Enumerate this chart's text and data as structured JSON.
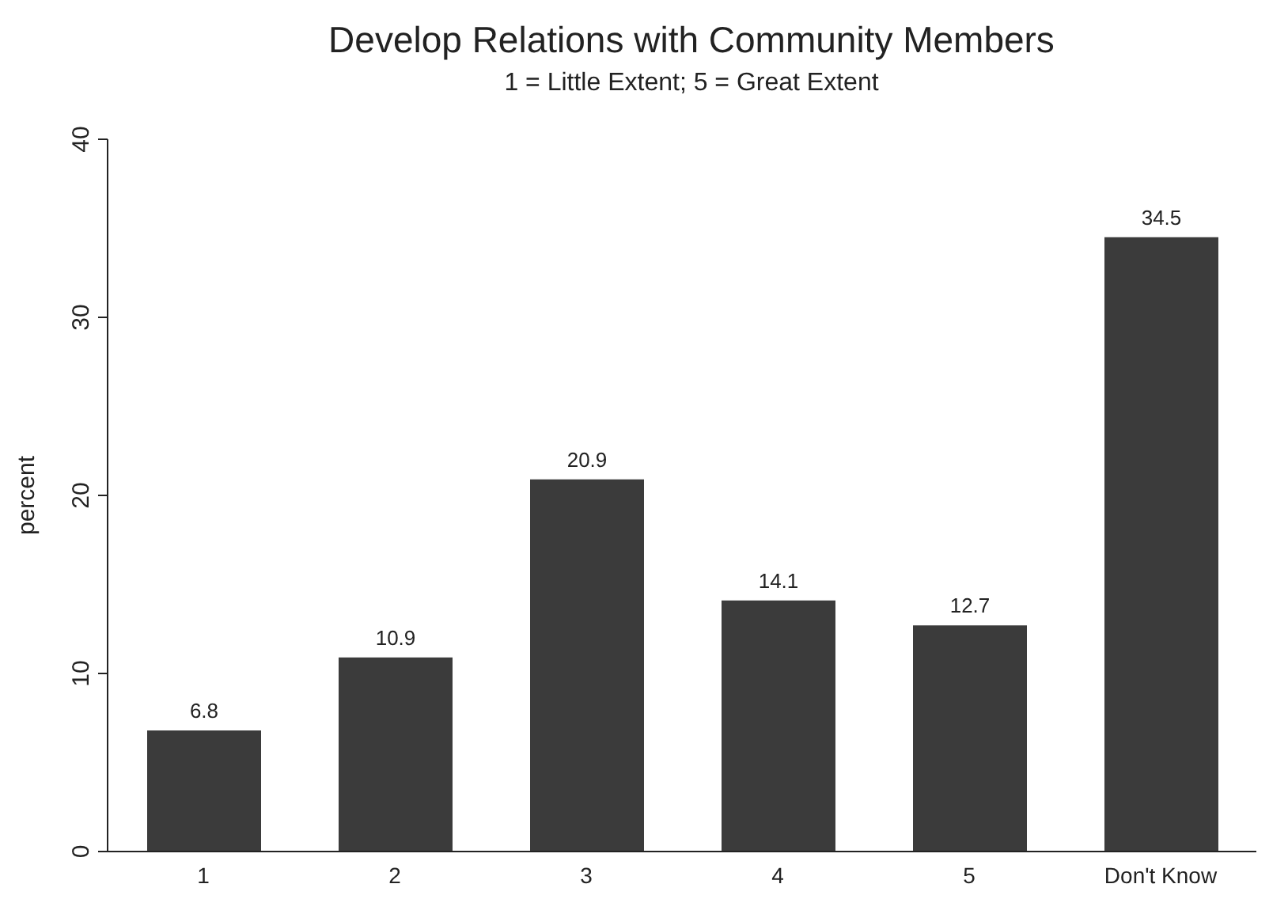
{
  "chart_data": {
    "type": "bar",
    "title": "Develop Relations with Community Members",
    "subtitle": "1 = Little Extent; 5 = Great Extent",
    "ylabel": "percent",
    "categories": [
      "1",
      "2",
      "3",
      "4",
      "5",
      "Don't Know"
    ],
    "values": [
      6.8,
      10.9,
      20.9,
      14.1,
      12.7,
      34.5
    ],
    "color": "#3b3b3b",
    "ylim": [
      0,
      40
    ],
    "yticks": [
      0,
      10,
      20,
      30,
      40
    ],
    "data_labels": true,
    "grid": false,
    "legend": false
  }
}
